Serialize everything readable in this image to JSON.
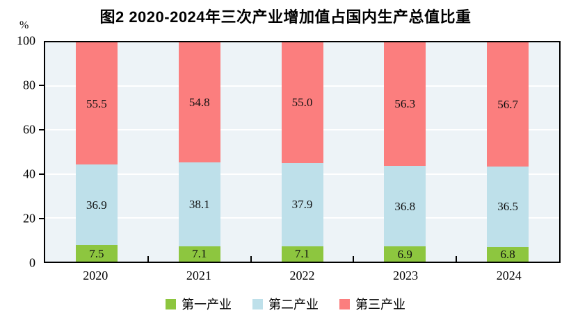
{
  "title": "图2  2020-2024年三次产业增加值占国内生产总值比重",
  "y_axis": {
    "unit": "%",
    "tick_labels": [
      "0",
      "20",
      "40",
      "60",
      "80",
      "100"
    ],
    "tick_values": [
      0,
      20,
      40,
      60,
      80,
      100
    ]
  },
  "legend": {
    "items": [
      {
        "label": "第一产业",
        "color": "#8dc63f"
      },
      {
        "label": "第二产业",
        "color": "#bee0ea"
      },
      {
        "label": "第三产业",
        "color": "#fb7e7e"
      }
    ]
  },
  "colors": {
    "plot_background": "#edf3f7",
    "gridline": "#ffffff",
    "axis": "#000000",
    "primary_industry": "#8dc63f",
    "secondary_industry": "#bee0ea",
    "tertiary_industry": "#fb7e7e"
  },
  "chart_data": {
    "type": "bar",
    "stacked": true,
    "title": "图2  2020-2024年三次产业增加值占国内生产总值比重",
    "categories": [
      "2020",
      "2021",
      "2022",
      "2023",
      "2024"
    ],
    "series": [
      {
        "name": "第一产业",
        "color": "#8dc63f",
        "values": [
          7.5,
          7.1,
          7.1,
          6.9,
          6.8
        ]
      },
      {
        "name": "第二产业",
        "color": "#bee0ea",
        "values": [
          36.9,
          38.1,
          37.9,
          36.8,
          36.5
        ]
      },
      {
        "name": "第三产业",
        "color": "#fb7e7e",
        "values": [
          55.5,
          54.8,
          55.0,
          56.3,
          56.7
        ]
      }
    ],
    "xlabel": "",
    "ylabel": "%",
    "ylim": [
      0,
      100
    ],
    "yticks": [
      0,
      20,
      40,
      60,
      80,
      100
    ],
    "grid": true,
    "gridline_values": [
      20,
      40,
      60,
      80
    ],
    "legend_position": "bottom",
    "value_label_decimals": 1
  }
}
